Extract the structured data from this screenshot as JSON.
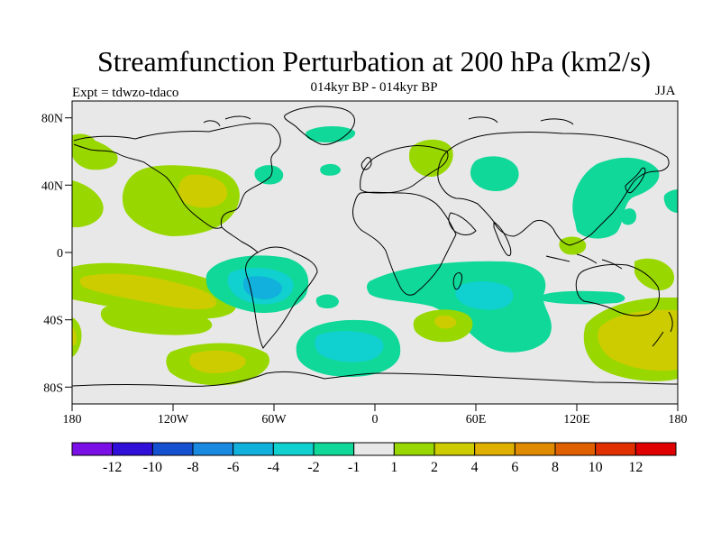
{
  "title": "Streamfunction Perturbation at 200 hPa (km2/s)",
  "subtitle": "014kyr BP - 014kyr BP",
  "expt_label": "Expt = tdwzo-tdaco",
  "season": "JJA",
  "lat_labels": [
    "80N",
    "40N",
    "0",
    "40S",
    "80S"
  ],
  "lon_labels": [
    "180",
    "120W",
    "60W",
    "0",
    "60E",
    "120E",
    "180"
  ],
  "colorbar": {
    "colors": [
      "#7a10e6",
      "#3010d8",
      "#1550d0",
      "#1a8ae0",
      "#12b0dc",
      "#10d0d0",
      "#10d898",
      "#e8e8e8",
      "#98d800",
      "#cccc00",
      "#e0b000",
      "#e08a00",
      "#e06000",
      "#e03000",
      "#e00000"
    ],
    "labels": [
      "-12",
      "-10",
      "-8",
      "-6",
      "-4",
      "-2",
      "-1",
      "1",
      "2",
      "4",
      "6",
      "8",
      "10",
      "12"
    ]
  },
  "palette": {
    "ocean_bg": "#e8e8e8",
    "coast": "#000000",
    "tick": "#000000"
  },
  "chart_data": {
    "type": "heatmap",
    "title": "Streamfunction Perturbation at 200 hPa (km2/s)",
    "x_range": [
      -180,
      180
    ],
    "y_range": [
      -90,
      90
    ],
    "contour_levels": [
      -12,
      -10,
      -8,
      -6,
      -4,
      -2,
      -1,
      1,
      2,
      4,
      6,
      8,
      10,
      12
    ],
    "features": [
      {
        "lon": -105,
        "lat": 40,
        "level": 2
      },
      {
        "lon": -130,
        "lat": -20,
        "level": 2
      },
      {
        "lon": -100,
        "lat": -60,
        "level": 2
      },
      {
        "lon": -165,
        "lat": 10,
        "level": 2
      },
      {
        "lon": 155,
        "lat": -50,
        "level": 2
      },
      {
        "lon": 40,
        "lat": -38,
        "level": 2
      },
      {
        "lon": 100,
        "lat": 5,
        "level": -1
      },
      {
        "lon": -60,
        "lat": -15,
        "level": -4
      },
      {
        "lon": -15,
        "lat": -52,
        "level": -4
      },
      {
        "lon": 65,
        "lat": -25,
        "level": -4
      },
      {
        "lon": 65,
        "lat": 45,
        "level": -1
      },
      {
        "lon": -25,
        "lat": 72,
        "level": -1
      },
      {
        "lon": -65,
        "lat": 47,
        "level": -1
      },
      {
        "lon": 140,
        "lat": 45,
        "level": -1
      },
      {
        "lon": 28,
        "lat": 58,
        "level": 1
      }
    ]
  }
}
